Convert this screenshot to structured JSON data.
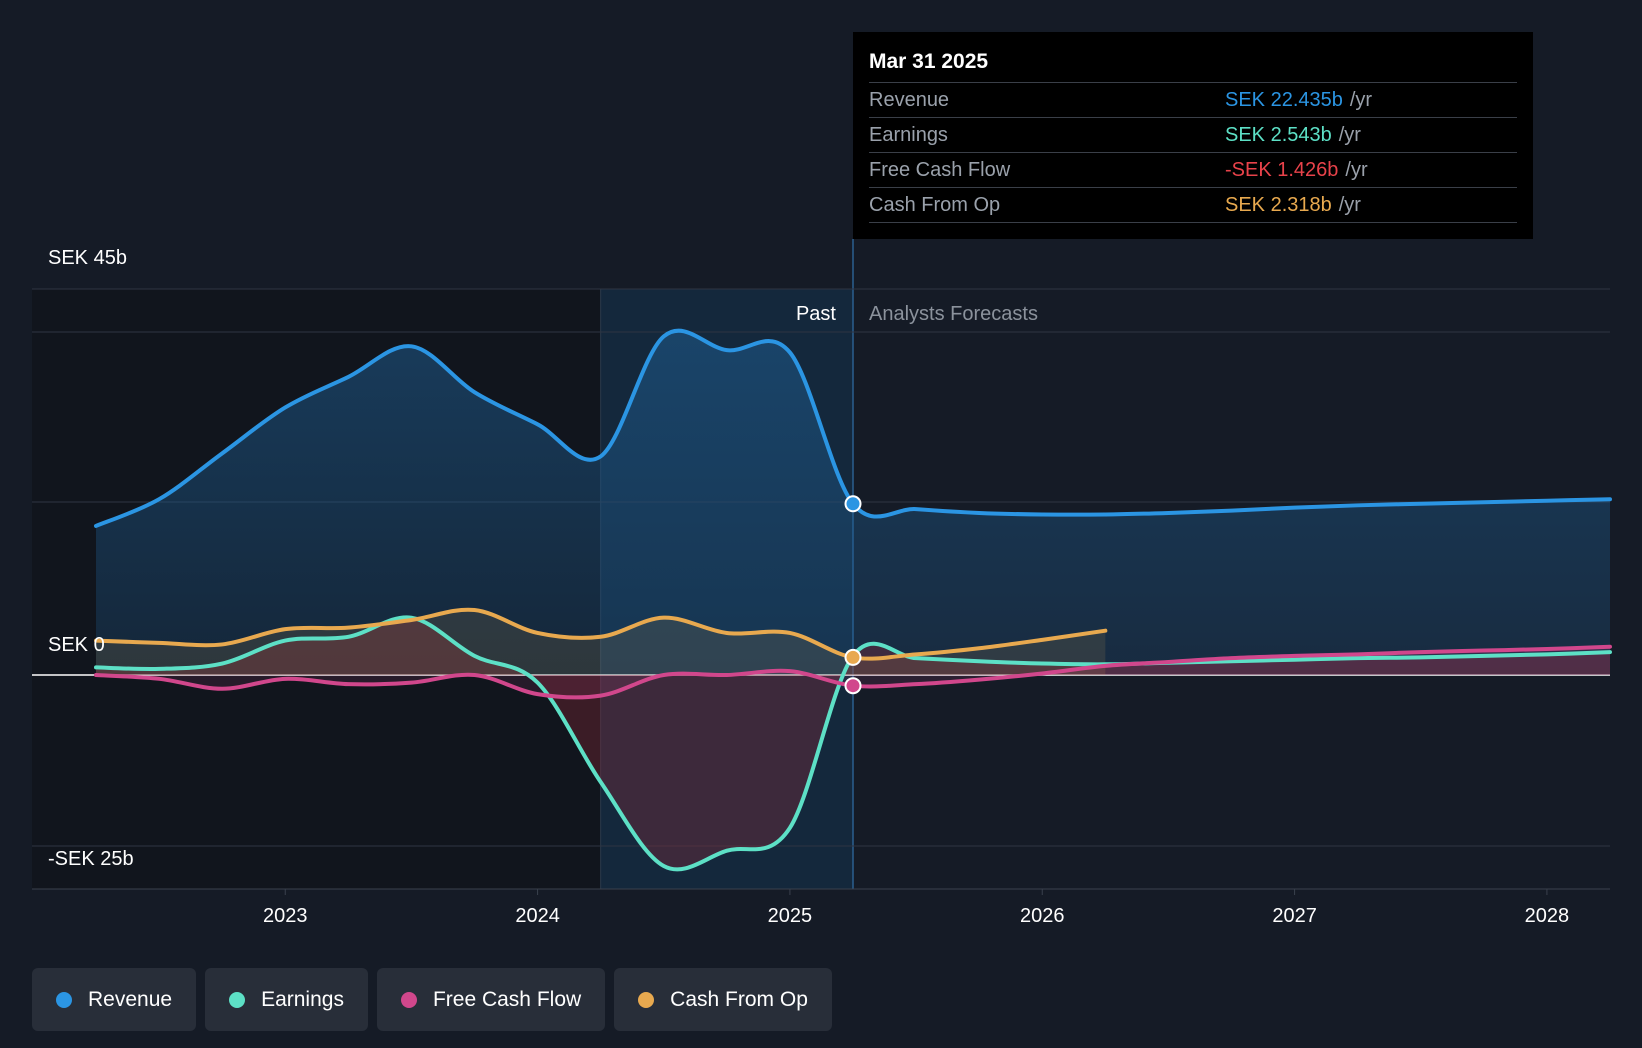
{
  "chart_data": {
    "type": "line",
    "y_unit": "SEK b",
    "ylim": [
      -25,
      45
    ],
    "y_tick_labels": [
      "SEK 45b",
      "SEK 0",
      "-SEK 25b"
    ],
    "x_tick_labels": [
      "2023",
      "2024",
      "2025",
      "2026",
      "2027",
      "2028"
    ],
    "xlim": [
      2022.25,
      2028.25
    ],
    "past_label": "Past",
    "forecast_label": "Analysts Forecasts",
    "divider_x": 2025.25,
    "highlight_start_x": 2024.25,
    "series": [
      {
        "name": "Revenue",
        "color": "#2b95e3",
        "x": [
          2022.25,
          2022.5,
          2022.75,
          2023.0,
          2023.25,
          2023.5,
          2023.75,
          2024.0,
          2024.25,
          2024.5,
          2024.75,
          2025.0,
          2025.25,
          2025.5,
          2025.75,
          2026.0,
          2026.25,
          2026.5,
          2026.75,
          2027.0,
          2027.25,
          2027.5,
          2027.75,
          2028.0,
          2028.25
        ],
        "values": [
          19.5,
          23.0,
          29.0,
          35.0,
          39.0,
          43.0,
          37.0,
          32.8,
          28.6,
          44.3,
          42.5,
          42.2,
          22.4,
          21.7,
          21.2,
          21.0,
          21.0,
          21.2,
          21.5,
          21.9,
          22.2,
          22.4,
          22.6,
          22.8,
          23.0
        ]
      },
      {
        "name": "Earnings",
        "color": "#5de0c6",
        "x": [
          2022.25,
          2022.5,
          2022.75,
          2023.0,
          2023.25,
          2023.5,
          2023.75,
          2024.0,
          2024.25,
          2024.5,
          2024.75,
          2025.0,
          2025.25,
          2025.5,
          2025.75,
          2026.0,
          2026.25,
          2026.5,
          2026.75,
          2027.0,
          2027.25,
          2027.5,
          2027.75,
          2028.0,
          2028.25
        ],
        "values": [
          1.0,
          0.8,
          1.5,
          4.5,
          5.0,
          7.5,
          2.5,
          -1.0,
          -14.0,
          -25.0,
          -23.0,
          -20.0,
          2.5,
          2.2,
          1.8,
          1.5,
          1.4,
          1.6,
          1.8,
          2.0,
          2.2,
          2.3,
          2.5,
          2.7,
          3.0
        ]
      },
      {
        "name": "Free Cash Flow",
        "color": "#d1478c",
        "x": [
          2022.25,
          2022.5,
          2022.75,
          2023.0,
          2023.25,
          2023.5,
          2023.75,
          2024.0,
          2024.25,
          2024.5,
          2024.75,
          2025.0,
          2025.25,
          2025.5,
          2025.75,
          2026.0,
          2026.25,
          2026.5,
          2026.75,
          2027.0,
          2027.25,
          2027.5,
          2027.75,
          2028.0,
          2028.25
        ],
        "values": [
          0.0,
          -0.5,
          -1.8,
          -0.5,
          -1.2,
          -1.0,
          0.0,
          -2.5,
          -2.7,
          0.0,
          0.0,
          0.5,
          -1.4,
          -1.2,
          -0.6,
          0.2,
          1.2,
          1.7,
          2.2,
          2.5,
          2.7,
          3.0,
          3.2,
          3.4,
          3.7
        ]
      },
      {
        "name": "Cash From Op",
        "color": "#e8a94f",
        "x": [
          2022.25,
          2022.5,
          2022.75,
          2023.0,
          2023.25,
          2023.5,
          2023.75,
          2024.0,
          2024.25,
          2024.5,
          2024.75,
          2025.0,
          2025.25,
          2025.5,
          2025.75,
          2026.0,
          2026.25
        ],
        "values": [
          4.5,
          4.2,
          4.0,
          6.0,
          6.2,
          7.2,
          8.5,
          5.5,
          5.0,
          7.5,
          5.5,
          5.5,
          2.3,
          2.7,
          3.5,
          4.6,
          5.8
        ]
      }
    ],
    "tooltip": {
      "date": "Mar 31 2025",
      "rows": [
        {
          "label": "Revenue",
          "value": "SEK 22.435b",
          "unit": "/yr",
          "color": "#2b95e3"
        },
        {
          "label": "Earnings",
          "value": "SEK 2.543b",
          "unit": "/yr",
          "color": "#5de0c6"
        },
        {
          "label": "Free Cash Flow",
          "value": "-SEK 1.426b",
          "unit": "/yr",
          "color": "#e8424a"
        },
        {
          "label": "Cash From Op",
          "value": "SEK 2.318b",
          "unit": "/yr",
          "color": "#e8a94f"
        }
      ]
    }
  },
  "legend": [
    {
      "label": "Revenue",
      "color": "#2b95e3"
    },
    {
      "label": "Earnings",
      "color": "#5de0c6"
    },
    {
      "label": "Free Cash Flow",
      "color": "#d1478c"
    },
    {
      "label": "Cash From Op",
      "color": "#e8a94f"
    }
  ]
}
